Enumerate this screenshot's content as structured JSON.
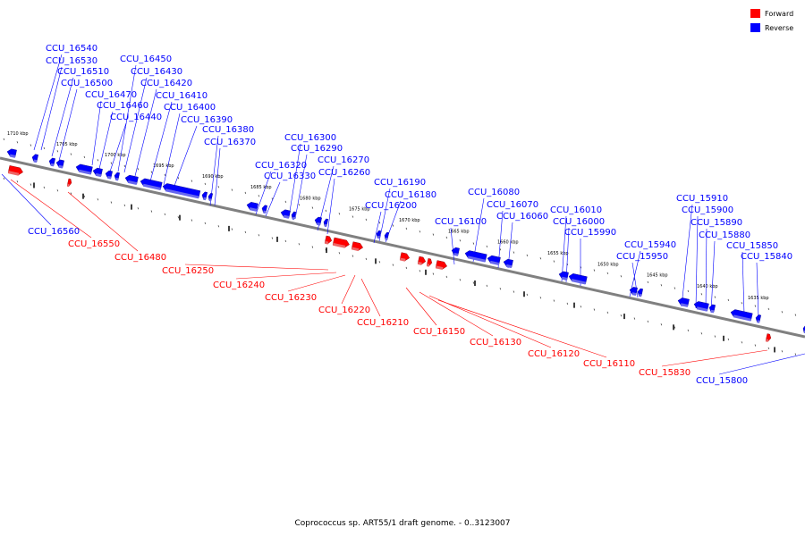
{
  "caption": "Coprococcus sp. ART55/1 draft genome. - 0..3123007",
  "legend": {
    "forward": {
      "label": "Forward",
      "color": "#ff0000"
    },
    "reverse": {
      "label": "Reverse",
      "color": "#0000ff"
    }
  },
  "colors": {
    "forward": "#ff0000",
    "reverse": "#0000ff",
    "backbone": "#808080"
  },
  "kbp_labels": [
    "1710 kbp",
    "1705 kbp",
    "1700 kbp",
    "1695 kbp",
    "1690 kbp",
    "1685 kbp",
    "1680 kbp",
    "1675 kbp",
    "1670 kbp",
    "1665 kbp",
    "1660 kbp",
    "1655 kbp",
    "1650 kbp",
    "1645 kbp",
    "1640 kbp",
    "1635 kbp"
  ],
  "reverse_genes": [
    "CCU_16540",
    "CCU_16530",
    "CCU_16510",
    "CCU_16500",
    "CCU_16470",
    "CCU_16460",
    "CCU_16440",
    "CCU_16450",
    "CCU_16430",
    "CCU_16420",
    "CCU_16410",
    "CCU_16400",
    "CCU_16390",
    "CCU_16380",
    "CCU_16370",
    "CCU_16300",
    "CCU_16290",
    "CCU_16320",
    "CCU_16330",
    "CCU_16270",
    "CCU_16260",
    "CCU_16190",
    "CCU_16180",
    "CCU_16200",
    "CCU_16080",
    "CCU_16070",
    "CCU_16100",
    "CCU_16060",
    "CCU_16010",
    "CCU_16000",
    "CCU_15990",
    "CCU_15940",
    "CCU_15950",
    "CCU_15910",
    "CCU_15900",
    "CCU_15890",
    "CCU_15880",
    "CCU_15850",
    "CCU_15840",
    "CCU_16560",
    "CCU_15800"
  ],
  "forward_genes": [
    "CCU_16550",
    "CCU_16480",
    "CCU_16250",
    "CCU_16240",
    "CCU_16230",
    "CCU_16220",
    "CCU_16210",
    "CCU_16150",
    "CCU_16130",
    "CCU_16120",
    "CCU_16110",
    "CCU_15830"
  ]
}
